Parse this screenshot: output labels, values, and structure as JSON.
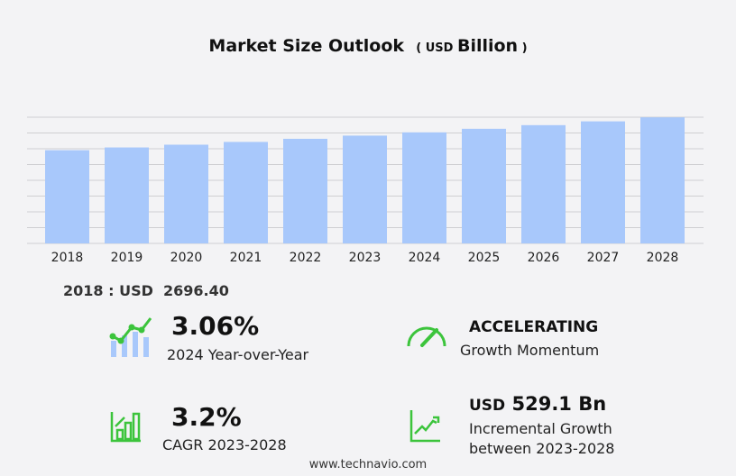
{
  "chart_data": {
    "type": "bar",
    "title": "Market Size Outlook",
    "unit_prefix": "USD",
    "unit": "Billion",
    "categories": [
      "2018",
      "2019",
      "2020",
      "2021",
      "2022",
      "2023",
      "2024",
      "2025",
      "2026",
      "2027",
      "2028"
    ],
    "values": [
      2696.4,
      2775,
      2855,
      2935,
      3025,
      3117,
      3212,
      3315,
      3420,
      3530,
      3646
    ],
    "ylim": [
      0,
      3650
    ],
    "grid": true,
    "bar_color": "#a8c8fb"
  },
  "base": {
    "label": "2018 : USD",
    "value": "2696.40"
  },
  "stats": {
    "yoy": {
      "value": "3.06%",
      "label": "2024 Year-over-Year"
    },
    "momentum": {
      "value": "ACCELERATING",
      "label": "Growth Momentum"
    },
    "cagr": {
      "value": "3.2%",
      "label": "CAGR 2023-2028"
    },
    "incr": {
      "prefix": "USD",
      "value": "529.1 Bn",
      "label1": "Incremental Growth",
      "label2": "between 2023-2028"
    }
  },
  "footer": "www.technavio.com",
  "accent": "#3cc43c"
}
